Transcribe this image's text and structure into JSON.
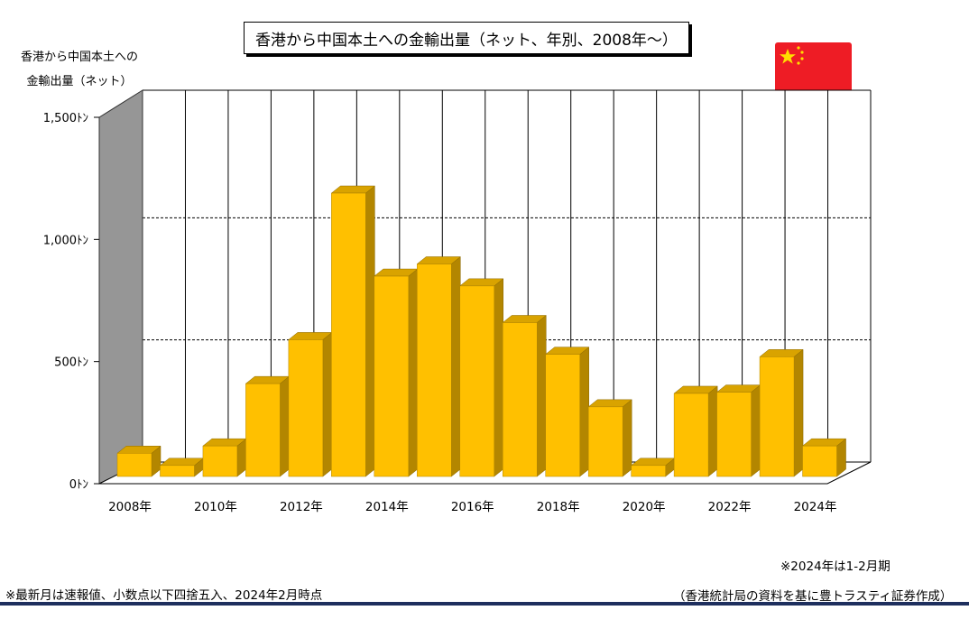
{
  "chart_data": {
    "type": "bar",
    "title": "香港から中国本土への金輸出量（ネット、年別、2008年～）",
    "ylabel_lines": [
      "香港から中国本土への",
      "金輸出量（ネット）"
    ],
    "categories": [
      "2008",
      "2009",
      "2010",
      "2011",
      "2012",
      "2013",
      "2014",
      "2015",
      "2016",
      "2017",
      "2018",
      "2019",
      "2020",
      "2021",
      "2022",
      "2023",
      "2024"
    ],
    "values": [
      95,
      45,
      125,
      380,
      560,
      1160,
      820,
      870,
      780,
      630,
      500,
      285,
      45,
      340,
      345,
      490,
      125
    ],
    "ylim": [
      0,
      1500
    ],
    "yticks": [
      {
        "v": 0,
        "label": "0ﾄﾝ"
      },
      {
        "v": 500,
        "label": "500ﾄﾝ"
      },
      {
        "v": 1000,
        "label": "1,000ﾄﾝ"
      },
      {
        "v": 1500,
        "label": "1,500ﾄﾝ"
      }
    ],
    "xtick_labels": [
      {
        "i": 0,
        "label": "2008年"
      },
      {
        "i": 2,
        "label": "2010年"
      },
      {
        "i": 4,
        "label": "2012年"
      },
      {
        "i": 6,
        "label": "2014年"
      },
      {
        "i": 8,
        "label": "2016年"
      },
      {
        "i": 10,
        "label": "2018年"
      },
      {
        "i": 12,
        "label": "2020年"
      },
      {
        "i": 14,
        "label": "2022年"
      },
      {
        "i": 16,
        "label": "2024年"
      }
    ],
    "grid": true,
    "bar_color": "#FFC000",
    "bar_side_color": "#B38600",
    "bar_top_color": "#D9A300"
  },
  "notes": {
    "period": "※2024年は1-2月期",
    "footnote": "※最新月は速報値、小数点以下四捨五入、2024年2月時点",
    "source": "（香港統計局の資料を基に豊トラスティ証券作成）"
  },
  "colors": {
    "flag_red": "#EE1C25",
    "flag_star": "#FFDE00",
    "footer_rule": "#1E2F5E"
  },
  "icons": {
    "flag": "china-flag-icon"
  }
}
